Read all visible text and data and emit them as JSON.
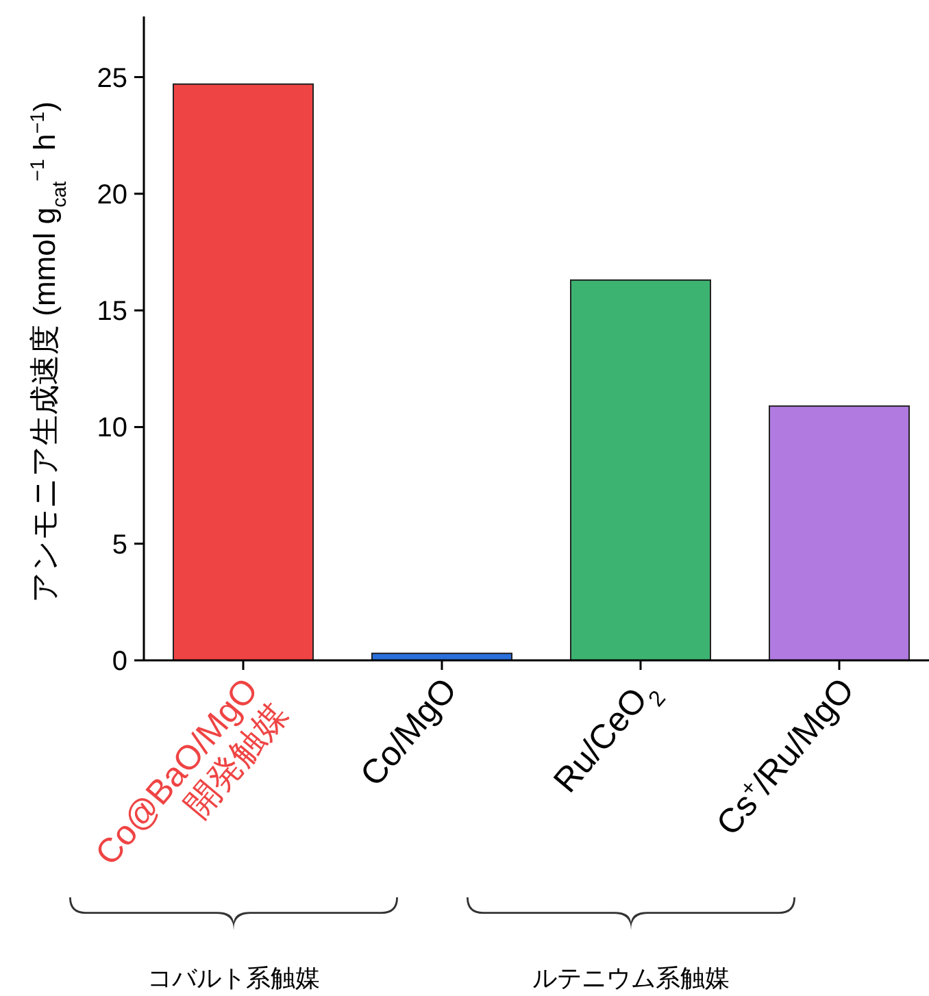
{
  "chart_data": {
    "type": "bar",
    "ylabel": "アンモニア生成速度 (mmol g$_{cat}$$^{−1}$ h$^{−1}$)",
    "categories": [
      "Co@BaO/MgO 開発触媒",
      "Co/MgO",
      "Ru/CeO$_{2}$",
      "Cs$^{+}$/Ru/MgO"
    ],
    "values": [
      24.7,
      0.3,
      16.3,
      10.9
    ],
    "colors": [
      "#ef4444",
      "#2a6fdb",
      "#3cb371",
      "#b07ae0"
    ],
    "ylim": [
      0,
      27.6
    ],
    "yticks": [
      0,
      5,
      10,
      15,
      20,
      25
    ],
    "grid": false,
    "annotations": [
      "コバルト系触媒",
      "ルテニウム系触媒"
    ]
  }
}
